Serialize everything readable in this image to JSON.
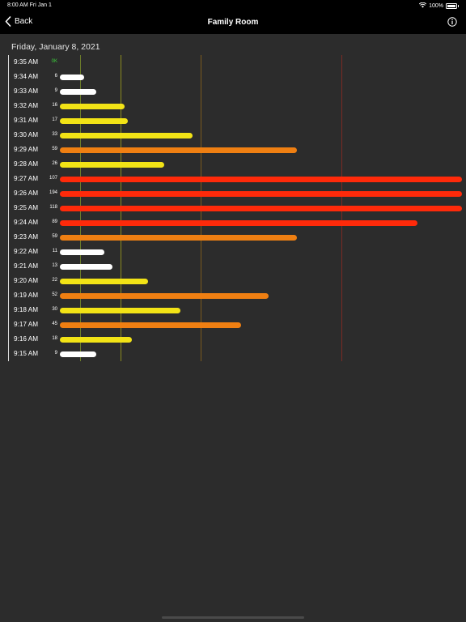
{
  "status_bar": {
    "time_date": "8:00 AM  Fri Jan 1",
    "battery": "100%"
  },
  "nav": {
    "back_label": "Back",
    "title": "Family Room"
  },
  "date_header": "Friday, January 8, 2021",
  "colors": {
    "low": "#ffffff",
    "moderate": "#f2e316",
    "high": "#ef7f12",
    "severe": "#ff2a0a",
    "ok_text": "#3cd23c",
    "threshold_1": "#6a7a2a",
    "threshold_2": "#8a8a1e",
    "threshold_3": "#7a5a1e",
    "threshold_4": "#7a2a24"
  },
  "chart_data": {
    "type": "bar",
    "orientation": "horizontal",
    "scale_max": 100,
    "thresholds": [
      5,
      15,
      35,
      70
    ],
    "categories": [
      "9:35 AM",
      "9:34 AM",
      "9:33 AM",
      "9:32 AM",
      "9:31 AM",
      "9:30 AM",
      "9:29 AM",
      "9:28 AM",
      "9:27 AM",
      "9:26 AM",
      "9:25 AM",
      "9:24 AM",
      "9:23 AM",
      "9:22 AM",
      "9:21 AM",
      "9:20 AM",
      "9:19 AM",
      "9:18 AM",
      "9:17 AM",
      "9:16 AM",
      "9:15 AM"
    ],
    "value_labels": [
      "0K",
      "6",
      "9",
      "16",
      "17",
      "33",
      "59",
      "26",
      "107",
      "194",
      "118",
      "89",
      "59",
      "11",
      "13",
      "22",
      "52",
      "30",
      "45",
      "18",
      "9"
    ],
    "values": [
      0,
      6,
      9,
      16,
      17,
      33,
      59,
      26,
      107,
      194,
      118,
      89,
      59,
      11,
      13,
      22,
      52,
      30,
      45,
      18,
      9
    ],
    "levels": [
      "ok",
      "low",
      "low",
      "moderate",
      "moderate",
      "moderate",
      "high",
      "moderate",
      "severe",
      "severe",
      "severe",
      "severe",
      "high",
      "low",
      "low",
      "moderate",
      "high",
      "moderate",
      "high",
      "moderate",
      "low"
    ]
  }
}
